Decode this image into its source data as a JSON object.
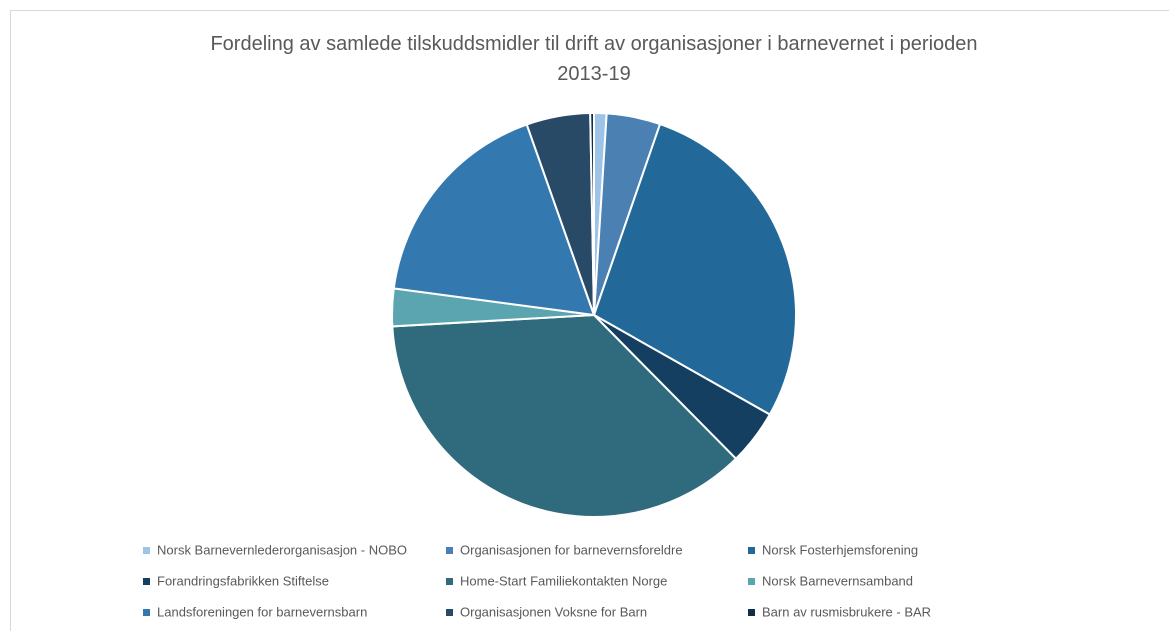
{
  "chart_data": {
    "type": "pie",
    "title": "Fordeling av samlede tilskuddsmidler til drift av organisasjoner i barnevernet i perioden 2013-19",
    "categories": [
      "Norsk Barnevernlederorganisasjon - NOBO",
      "Organisasjonen for barnevernsforeldre",
      "Norsk Fosterhjemsforening",
      "Forandringsfabrikken Stiftelse",
      "Home-Start Familiekontakten Norge",
      "Norsk Barnevernsamband",
      "Landsforeningen for barnevernsbarn",
      "Organisasjonen Voksne for Barn",
      "Barn av rusmisbrukere - BAR"
    ],
    "values": [
      1.0,
      4.3,
      27.9,
      4.4,
      36.5,
      3.0,
      17.5,
      5.1,
      0.3
    ],
    "colors": [
      "#9dc3e6",
      "#4a80b2",
      "#22699a",
      "#143f60",
      "#2f6b7c",
      "#5aa5b0",
      "#3478b0",
      "#284a66",
      "#0f2e4a"
    ],
    "legend": "bottom"
  }
}
